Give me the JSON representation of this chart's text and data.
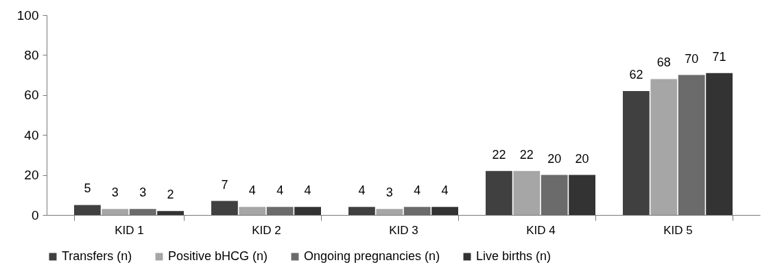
{
  "chart_data": {
    "type": "bar",
    "categories": [
      "KID 1",
      "KID 2",
      "KID 3",
      "KID 4",
      "KID 5"
    ],
    "series": [
      {
        "name": "Transfers (n)",
        "color": "#404040",
        "values": [
          5,
          7,
          4,
          22,
          62
        ]
      },
      {
        "name": "Positive bHCG (n)",
        "color": "#a6a6a6",
        "values": [
          3,
          4,
          3,
          22,
          68
        ]
      },
      {
        "name": "Ongoing pregnancies (n)",
        "color": "#6b6b6b",
        "values": [
          3,
          4,
          4,
          20,
          70
        ]
      },
      {
        "name": "Live births (n)",
        "color": "#333333",
        "values": [
          2,
          4,
          4,
          20,
          71
        ]
      }
    ],
    "ylim": [
      0,
      100
    ],
    "yticks": [
      0,
      20,
      40,
      60,
      80,
      100
    ],
    "grid": false,
    "legend": "bottom",
    "data_labels": true
  }
}
